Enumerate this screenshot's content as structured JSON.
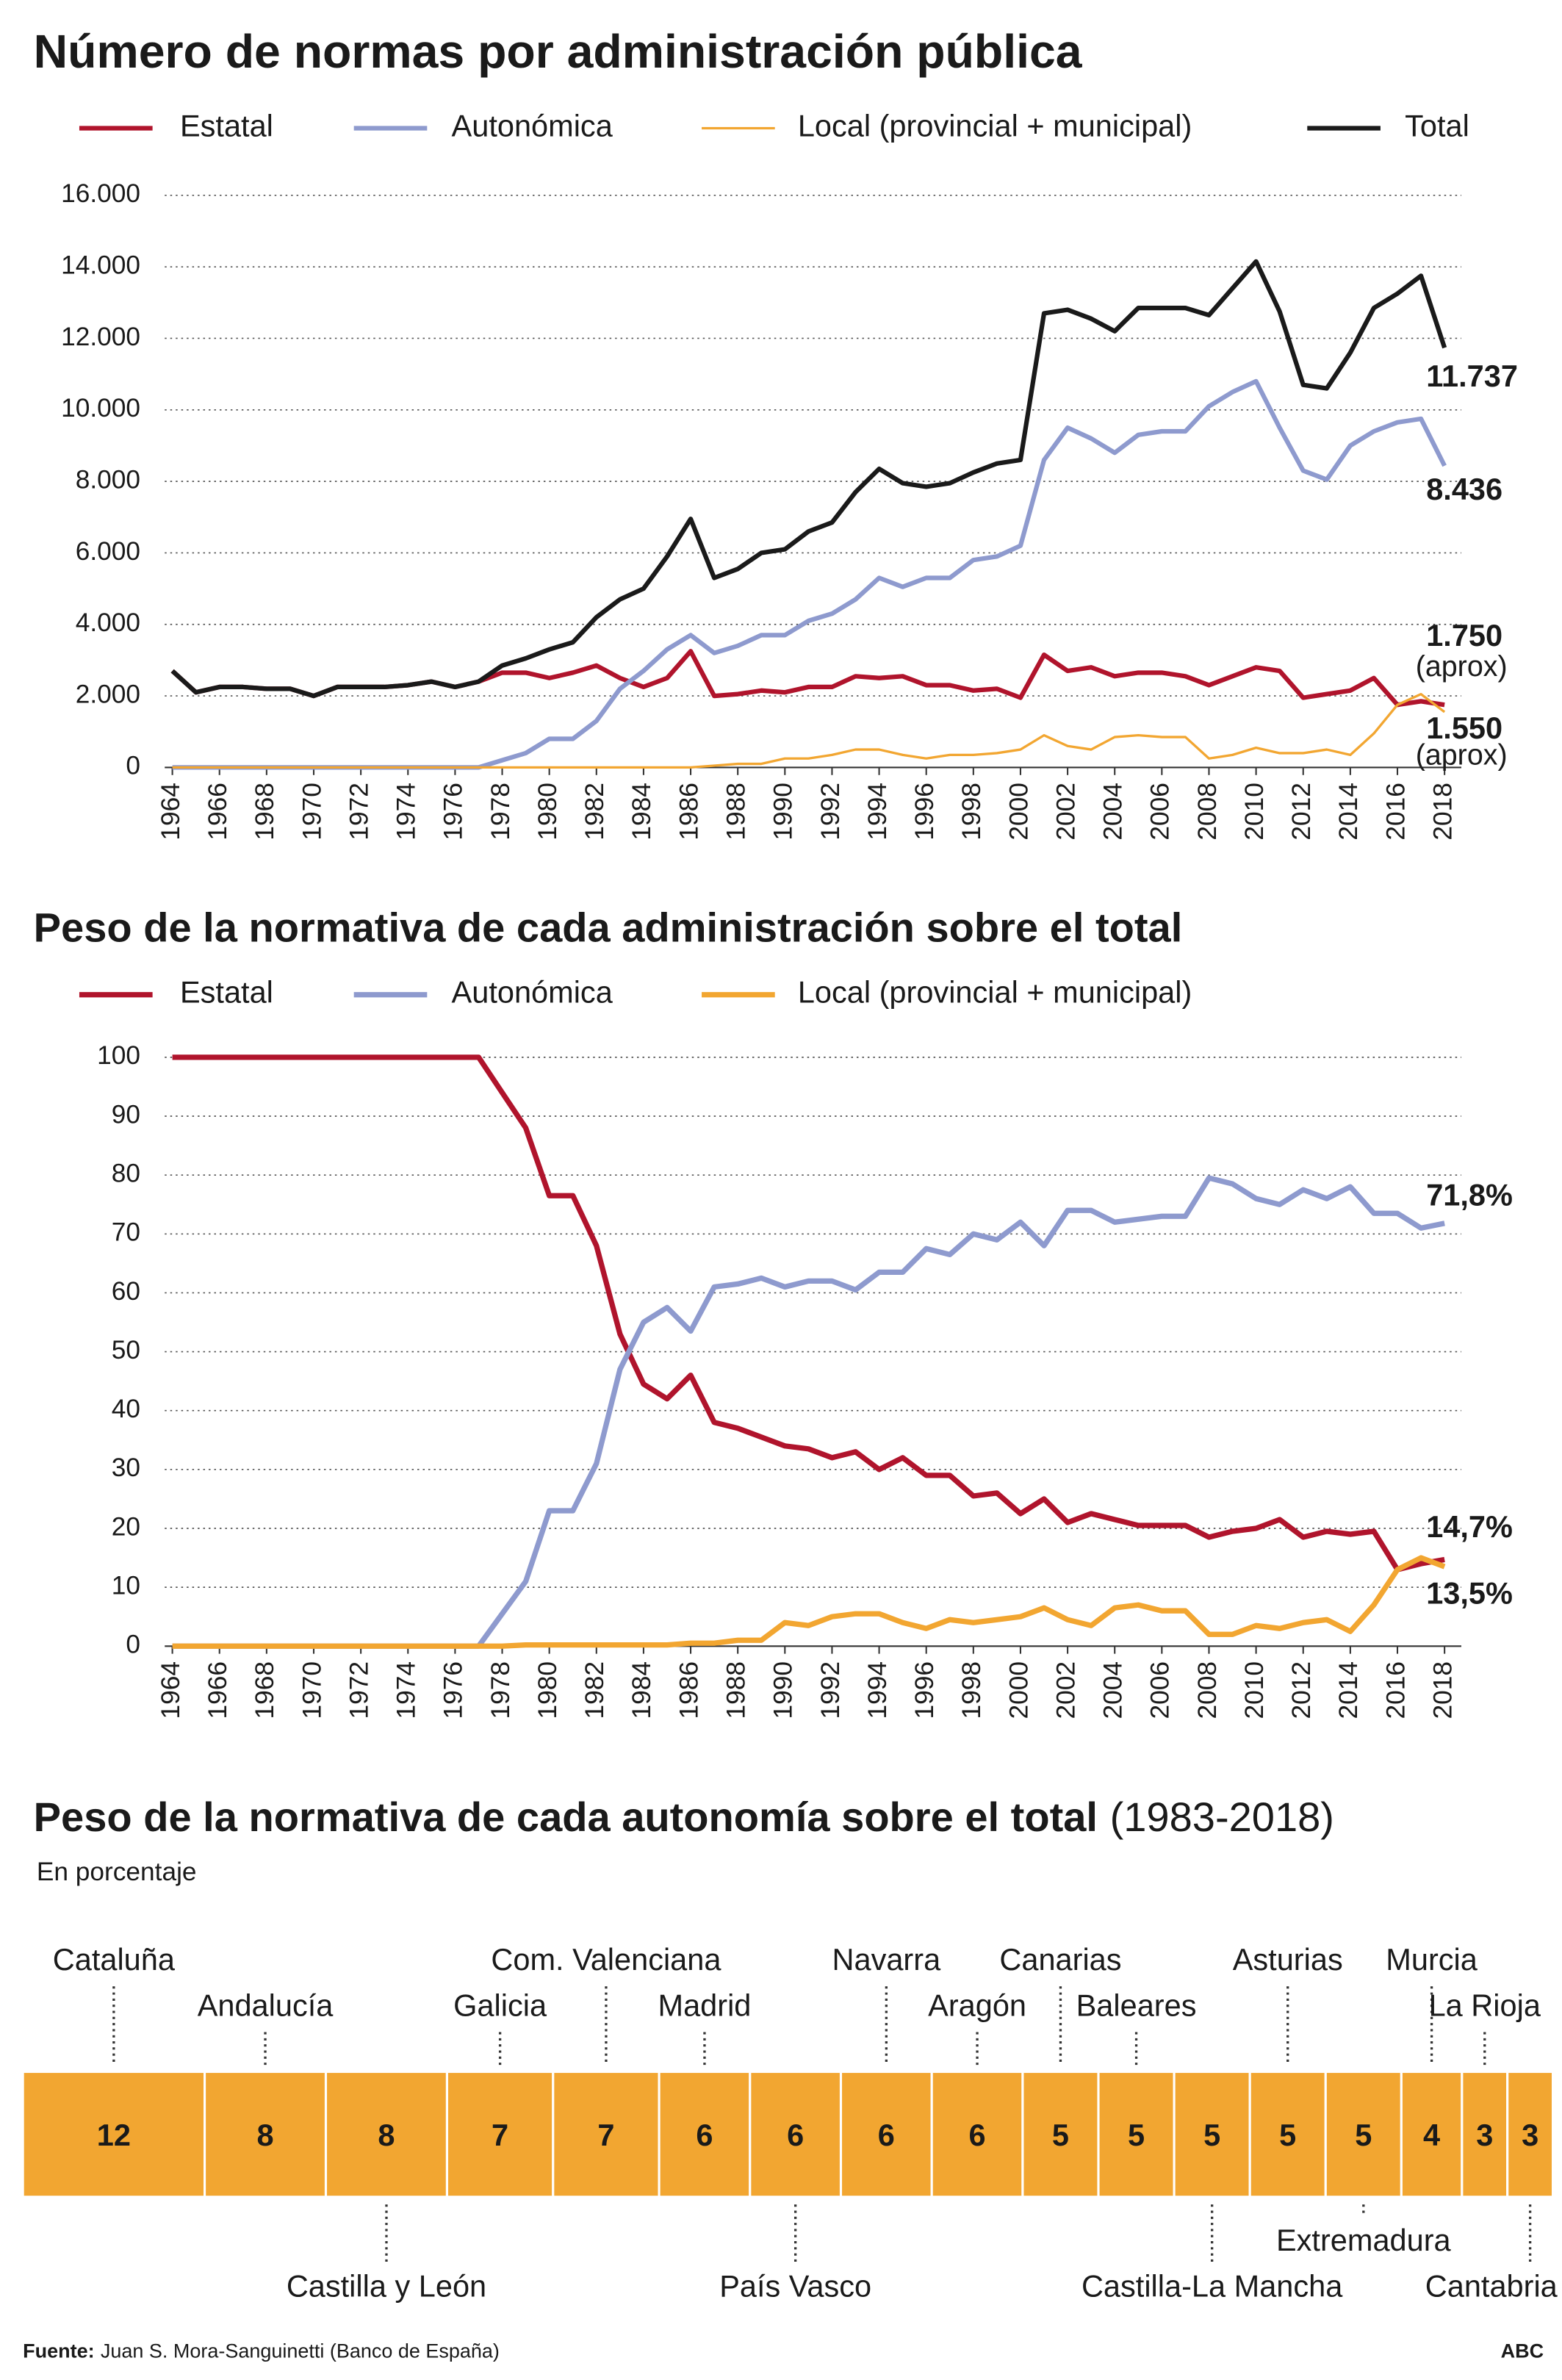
{
  "chart_data": [
    {
      "type": "line",
      "title": "Número de normas por administración pública",
      "x": [
        1964,
        1965,
        1966,
        1967,
        1968,
        1969,
        1970,
        1971,
        1972,
        1973,
        1974,
        1975,
        1976,
        1977,
        1978,
        1979,
        1980,
        1981,
        1982,
        1983,
        1984,
        1985,
        1986,
        1987,
        1988,
        1989,
        1990,
        1991,
        1992,
        1993,
        1994,
        1995,
        1996,
        1997,
        1998,
        1999,
        2000,
        2001,
        2002,
        2003,
        2004,
        2005,
        2006,
        2007,
        2008,
        2009,
        2010,
        2011,
        2012,
        2013,
        2014,
        2015,
        2016,
        2017,
        2018
      ],
      "xlim": [
        1964,
        2018
      ],
      "xticks": [
        1964,
        1966,
        1968,
        1970,
        1972,
        1974,
        1976,
        1978,
        1980,
        1982,
        1984,
        1986,
        1988,
        1990,
        1992,
        1994,
        1996,
        1998,
        2000,
        2002,
        2004,
        2006,
        2008,
        2010,
        2012,
        2014,
        2016,
        2018
      ],
      "ylim": [
        0,
        16000
      ],
      "yticks": [
        0,
        {
          "value": 2000,
          "label": "2.000"
        },
        {
          "value": 4000,
          "label": "4.000"
        },
        {
          "value": 6000,
          "label": "6.000"
        },
        {
          "value": 8000,
          "label": "8.000"
        },
        {
          "value": 10000,
          "label": "10.000"
        },
        {
          "value": 12000,
          "label": "12.000"
        },
        {
          "value": 14000,
          "label": "14.000"
        },
        {
          "value": 16000,
          "label": "16.000"
        }
      ],
      "grid": true,
      "series": [
        {
          "name": "Estatal",
          "color": "#b0142c",
          "values": [
            2700,
            2100,
            2250,
            2250,
            2200,
            2200,
            2000,
            2250,
            2250,
            2250,
            2300,
            2400,
            2250,
            2400,
            2650,
            2650,
            2500,
            2650,
            2850,
            2500,
            2250,
            2500,
            3250,
            2000,
            2050,
            2150,
            2100,
            2250,
            2250,
            2550,
            2500,
            2550,
            2300,
            2300,
            2150,
            2200,
            1950,
            3150,
            2700,
            2800,
            2550,
            2650,
            2650,
            2550,
            2300,
            2550,
            2800,
            2700,
            1950,
            2050,
            2150,
            2500,
            1750,
            1850,
            1750
          ],
          "value_labels": [
            null,
            null,
            null,
            null,
            null,
            null,
            null,
            null,
            null,
            null,
            null,
            null,
            null,
            null,
            null,
            null,
            null,
            null,
            null,
            null,
            null,
            null,
            null,
            null,
            null,
            null,
            null,
            null,
            null,
            null,
            null,
            null,
            null,
            null,
            null,
            null,
            null,
            null,
            null,
            null,
            null,
            null,
            null,
            null,
            null,
            null,
            null,
            null,
            null,
            null,
            null,
            null,
            null,
            null,
            "1.750"
          ]
        },
        {
          "name": "Autonómica",
          "color": "#8e9ace",
          "values": [
            0,
            0,
            0,
            0,
            0,
            0,
            0,
            0,
            0,
            0,
            0,
            0,
            0,
            0,
            200,
            400,
            800,
            800,
            1300,
            2200,
            2700,
            3300,
            3700,
            3200,
            3400,
            3700,
            3700,
            4100,
            4300,
            4700,
            5300,
            5050,
            5300,
            5300,
            5800,
            5900,
            6200,
            8600,
            9500,
            9200,
            8800,
            9300,
            9400,
            9400,
            10100,
            10500,
            10800,
            9500,
            8300,
            8050,
            9000,
            9400,
            9650,
            9750,
            8436
          ],
          "value_labels": [
            null,
            null,
            null,
            null,
            null,
            null,
            null,
            null,
            null,
            null,
            null,
            null,
            null,
            null,
            null,
            null,
            null,
            null,
            null,
            null,
            null,
            null,
            null,
            null,
            null,
            null,
            null,
            null,
            null,
            null,
            null,
            null,
            null,
            null,
            null,
            null,
            null,
            null,
            null,
            null,
            null,
            null,
            null,
            null,
            null,
            null,
            null,
            null,
            null,
            null,
            null,
            null,
            null,
            null,
            "8.436"
          ]
        },
        {
          "name": "Local (provincial + municipal)",
          "color": "#f2a631",
          "values": [
            0,
            0,
            0,
            0,
            0,
            0,
            0,
            0,
            0,
            0,
            0,
            0,
            0,
            0,
            0,
            0,
            0,
            0,
            0,
            0,
            0,
            0,
            0,
            50,
            100,
            100,
            250,
            250,
            350,
            500,
            500,
            350,
            250,
            350,
            350,
            400,
            500,
            900,
            600,
            500,
            850,
            900,
            850,
            850,
            250,
            350,
            550,
            400,
            400,
            500,
            350,
            950,
            1750,
            2050,
            1550
          ],
          "value_labels": [
            null,
            null,
            null,
            null,
            null,
            null,
            null,
            null,
            null,
            null,
            null,
            null,
            null,
            null,
            null,
            null,
            null,
            null,
            null,
            null,
            null,
            null,
            null,
            null,
            null,
            null,
            null,
            null,
            null,
            null,
            null,
            null,
            null,
            null,
            null,
            null,
            null,
            null,
            null,
            null,
            null,
            null,
            null,
            null,
            null,
            null,
            null,
            null,
            null,
            null,
            null,
            null,
            null,
            null,
            "1.550"
          ]
        },
        {
          "name": "Total",
          "color": "#1a1a1a",
          "values": [
            2700,
            2100,
            2250,
            2250,
            2200,
            2200,
            2000,
            2250,
            2250,
            2250,
            2300,
            2400,
            2250,
            2400,
            2850,
            3050,
            3300,
            3500,
            4200,
            4700,
            5000,
            5900,
            6950,
            5300,
            5550,
            6000,
            6100,
            6600,
            6850,
            7700,
            8350,
            7950,
            7850,
            7950,
            8250,
            8500,
            8600,
            12700,
            12800,
            12550,
            12200,
            12850,
            12850,
            12850,
            12650,
            13400,
            14150,
            12750,
            10700,
            10600,
            11600,
            12850,
            13250,
            13750,
            11737
          ],
          "value_labels": [
            null,
            null,
            null,
            null,
            null,
            null,
            null,
            null,
            null,
            null,
            null,
            null,
            null,
            null,
            null,
            null,
            null,
            null,
            null,
            null,
            null,
            null,
            null,
            null,
            null,
            null,
            null,
            null,
            null,
            null,
            null,
            null,
            null,
            null,
            null,
            null,
            null,
            null,
            null,
            null,
            null,
            null,
            null,
            null,
            null,
            null,
            null,
            null,
            null,
            null,
            null,
            null,
            null,
            null,
            "11.737"
          ]
        }
      ],
      "annotations": [
        "(aprox)",
        "(aprox)"
      ]
    },
    {
      "type": "line",
      "title": "Peso de la normativa de cada administración sobre el total",
      "x": [
        1964,
        1965,
        1966,
        1967,
        1968,
        1969,
        1970,
        1971,
        1972,
        1973,
        1974,
        1975,
        1976,
        1977,
        1978,
        1979,
        1980,
        1981,
        1982,
        1983,
        1984,
        1985,
        1986,
        1987,
        1988,
        1989,
        1990,
        1991,
        1992,
        1993,
        1994,
        1995,
        1996,
        1997,
        1998,
        1999,
        2000,
        2001,
        2002,
        2003,
        2004,
        2005,
        2006,
        2007,
        2008,
        2009,
        2010,
        2011,
        2012,
        2013,
        2014,
        2015,
        2016,
        2017,
        2018
      ],
      "xlim": [
        1964,
        2018
      ],
      "xticks": [
        1964,
        1966,
        1968,
        1970,
        1972,
        1974,
        1976,
        1978,
        1980,
        1982,
        1984,
        1986,
        1988,
        1990,
        1992,
        1994,
        1996,
        1998,
        2000,
        2002,
        2004,
        2006,
        2008,
        2010,
        2012,
        2014,
        2016,
        2018
      ],
      "ylim": [
        0,
        100
      ],
      "yticks": [
        0,
        10,
        20,
        30,
        40,
        50,
        60,
        70,
        80,
        90,
        100
      ],
      "grid": true,
      "series": [
        {
          "name": "Estatal",
          "color": "#b0142c",
          "values": [
            100,
            100,
            100,
            100,
            100,
            100,
            100,
            100,
            100,
            100,
            100,
            100,
            100,
            100,
            94,
            88,
            76.5,
            76.5,
            68,
            53,
            44.5,
            42,
            46,
            38,
            37,
            35.5,
            34,
            33.5,
            32,
            33,
            30,
            32,
            29,
            29,
            25.5,
            26,
            22.5,
            25,
            21,
            22.5,
            21.5,
            20.5,
            20.5,
            20.5,
            18.5,
            19.5,
            20,
            21.5,
            18.5,
            19.5,
            19,
            19.5,
            13,
            14,
            14.7
          ],
          "value_labels": [
            null,
            null,
            null,
            null,
            null,
            null,
            null,
            null,
            null,
            null,
            null,
            null,
            null,
            null,
            null,
            null,
            null,
            null,
            null,
            null,
            null,
            null,
            null,
            null,
            null,
            null,
            null,
            null,
            null,
            null,
            null,
            null,
            null,
            null,
            null,
            null,
            null,
            null,
            null,
            null,
            null,
            null,
            null,
            null,
            null,
            null,
            null,
            null,
            null,
            null,
            null,
            null,
            null,
            null,
            "14,7%"
          ]
        },
        {
          "name": "Autonómica",
          "color": "#8e9ace",
          "values": [
            0,
            0,
            0,
            0,
            0,
            0,
            0,
            0,
            0,
            0,
            0,
            0,
            0,
            0,
            5.5,
            11,
            23,
            23,
            31,
            47,
            55,
            57.5,
            53.5,
            61,
            61.5,
            62.5,
            61,
            62,
            62,
            60.5,
            63.5,
            63.5,
            67.5,
            66.5,
            70,
            69,
            72,
            68,
            74,
            74,
            72,
            72.5,
            73,
            73,
            79.5,
            78.5,
            76,
            75,
            77.5,
            76,
            78,
            73.5,
            73.5,
            71,
            71.8
          ],
          "value_labels": [
            null,
            null,
            null,
            null,
            null,
            null,
            null,
            null,
            null,
            null,
            null,
            null,
            null,
            null,
            null,
            null,
            null,
            null,
            null,
            null,
            null,
            null,
            null,
            null,
            null,
            null,
            null,
            null,
            null,
            null,
            null,
            null,
            null,
            null,
            null,
            null,
            null,
            null,
            null,
            null,
            null,
            null,
            null,
            null,
            null,
            null,
            null,
            null,
            null,
            null,
            null,
            null,
            null,
            null,
            "71,8%"
          ]
        },
        {
          "name": "Local (provincial + municipal)",
          "color": "#f2a631",
          "values": [
            0,
            0,
            0,
            0,
            0,
            0,
            0,
            0,
            0,
            0,
            0,
            0,
            0,
            0,
            0,
            0.2,
            0.2,
            0.2,
            0.2,
            0.2,
            0.2,
            0.2,
            0.5,
            0.5,
            1,
            1,
            4,
            3.5,
            5,
            5.5,
            5.5,
            4,
            3,
            4.5,
            4,
            4.5,
            5,
            6.5,
            4.5,
            3.5,
            6.5,
            7,
            6,
            6,
            2,
            2,
            3.5,
            3,
            4,
            4.5,
            2.5,
            7,
            13,
            15,
            13.5
          ],
          "value_labels": [
            null,
            null,
            null,
            null,
            null,
            null,
            null,
            null,
            null,
            null,
            null,
            null,
            null,
            null,
            null,
            null,
            null,
            null,
            null,
            null,
            null,
            null,
            null,
            null,
            null,
            null,
            null,
            null,
            null,
            null,
            null,
            null,
            null,
            null,
            null,
            null,
            null,
            null,
            null,
            null,
            null,
            null,
            null,
            null,
            null,
            null,
            null,
            null,
            null,
            null,
            null,
            null,
            null,
            null,
            "13,5%"
          ]
        }
      ]
    },
    {
      "type": "segmented_bar",
      "title": "Peso de la normativa de cada autonomía sobre el total",
      "title_note": "(1983-2018)",
      "subtitle": "En porcentaje",
      "color": "#f2a631",
      "categories": [
        "Cataluña",
        "Andalucía",
        "Castilla y León",
        "Galicia",
        "Com. Valenciana",
        "Madrid",
        "País Vasco",
        "Navarra",
        "Aragón",
        "Canarias",
        "Baleares",
        "Castilla-La Mancha",
        "Asturias",
        "Extremadura",
        "Murcia",
        "La Rioja",
        "Cantabria"
      ],
      "values": [
        12,
        8,
        8,
        7,
        7,
        6,
        6,
        6,
        6,
        5,
        5,
        5,
        5,
        5,
        4,
        3,
        3
      ]
    }
  ],
  "source": {
    "label": "Fuente:",
    "text": "Juan S. Mora-Sanguinetti (Banco de España)"
  },
  "credit": "ABC"
}
